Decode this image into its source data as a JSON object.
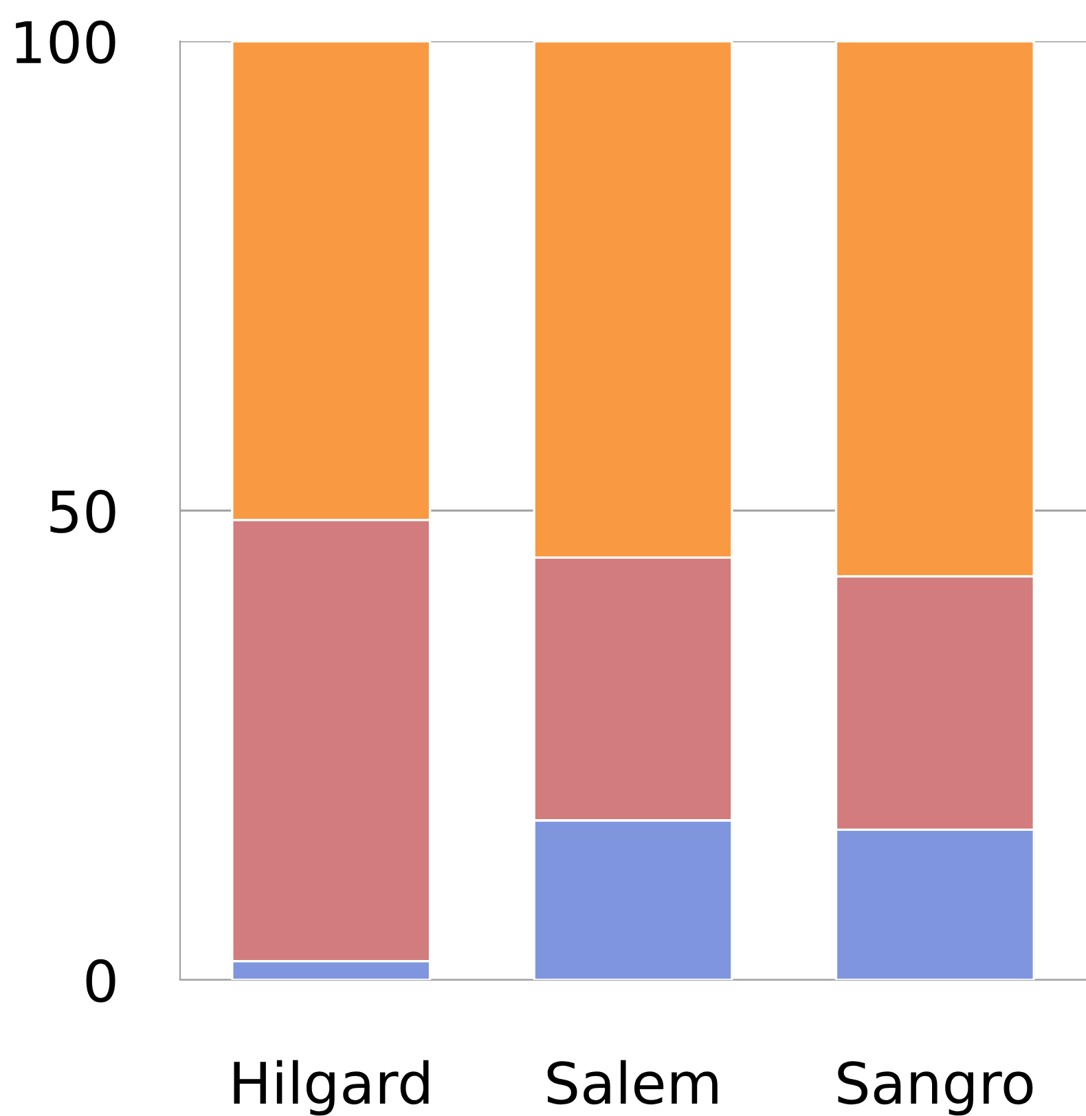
{
  "chart_data": {
    "type": "bar",
    "stacked": true,
    "categories": [
      "Hilgard",
      "Salem",
      "Sangro"
    ],
    "series": [
      {
        "color": "#7f96de",
        "values": [
          2,
          17,
          16
        ]
      },
      {
        "color": "#d27c7d",
        "values": [
          47,
          28,
          27
        ]
      },
      {
        "color": "#f99a43",
        "values": [
          51,
          55,
          57
        ]
      }
    ],
    "ylim": [
      0,
      100
    ],
    "yticks": [
      0,
      50,
      100
    ],
    "grid": "y"
  }
}
